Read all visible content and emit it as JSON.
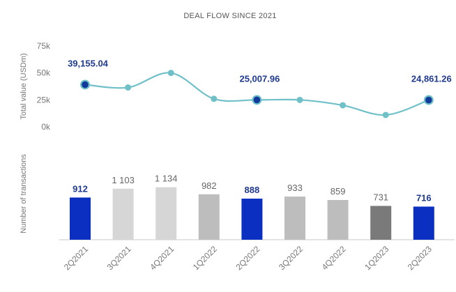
{
  "chart_data": [
    {
      "type": "line",
      "title": "DEAL FLOW SINCE 2021",
      "ylabel": "Total value (USDm)",
      "ylim": [
        0,
        75000
      ],
      "yticks": [
        "75k",
        "50k",
        "25k",
        "0k"
      ],
      "ytick_values": [
        75000,
        50000,
        25000,
        0
      ],
      "categories": [
        "2Q2021",
        "3Q2021",
        "4Q2021",
        "1Q2022",
        "2Q2022",
        "3Q2022",
        "4Q2022",
        "1Q2023",
        "2Q2023"
      ],
      "series": [
        {
          "values": [
            39155.04,
            36500,
            50000,
            26000,
            25007.96,
            25000,
            20000,
            11000,
            24861.26
          ],
          "color": "#6fc0c8",
          "highlighted_points": [
            0,
            4,
            8
          ],
          "highlight_color": "#123a9c"
        }
      ],
      "data_labels": [
        {
          "index": 0,
          "text": "39,155.04"
        },
        {
          "index": 4,
          "text": "25,007.96"
        },
        {
          "index": 8,
          "text": "24,861.26"
        }
      ],
      "grid": false
    },
    {
      "type": "bar",
      "ylabel": "Number of transactions",
      "categories": [
        "2Q2021",
        "3Q2021",
        "4Q2021",
        "1Q2022",
        "2Q2022",
        "3Q2022",
        "4Q2022",
        "1Q2023",
        "2Q2023"
      ],
      "values": [
        912,
        1103,
        1134,
        982,
        888,
        933,
        859,
        731,
        716
      ],
      "value_labels": [
        "912",
        "1 103",
        "1 134",
        "982",
        "888",
        "933",
        "859",
        "731",
        "716"
      ],
      "colors": [
        "#0a2fc1",
        "#d6d6d6",
        "#d6d6d6",
        "#bdbdbd",
        "#0a2fc1",
        "#bdbdbd",
        "#bdbdbd",
        "#7a7a7a",
        "#0a2fc1"
      ],
      "highlighted": [
        0,
        4,
        8
      ],
      "grid": false
    }
  ]
}
